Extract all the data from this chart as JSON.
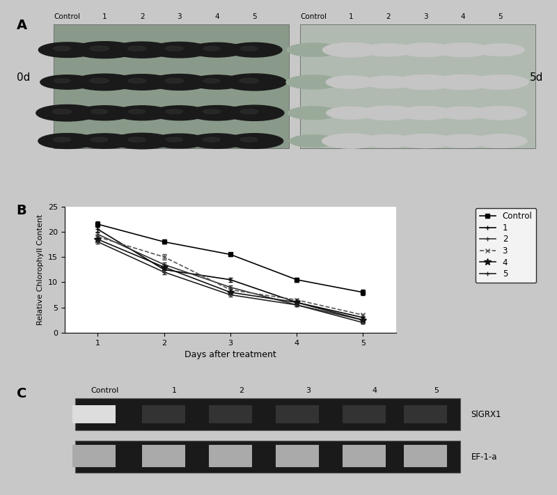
{
  "background_color": "#c8c8c8",
  "panel_A_label": "A",
  "panel_B_label": "B",
  "panel_C_label": "C",
  "top_labels_left": [
    "Control",
    "1",
    "2",
    "3",
    "4",
    "5"
  ],
  "top_labels_right": [
    "Control",
    "1",
    "2",
    "3",
    "4",
    "5"
  ],
  "side_label_left": "0d",
  "side_label_right": "5d",
  "xlabel": "Days after treatment",
  "ylabel": "Relative Chlorophyll Content",
  "ylim": [
    0,
    25
  ],
  "yticks": [
    0,
    5,
    10,
    15,
    20,
    25
  ],
  "xticks": [
    1,
    2,
    3,
    4,
    5
  ],
  "days": [
    1,
    2,
    3,
    4,
    5
  ],
  "series": {
    "Control": {
      "values": [
        21.5,
        18.0,
        15.5,
        10.5,
        8.0
      ],
      "errors": [
        0.5,
        0.4,
        0.4,
        0.4,
        0.6
      ],
      "marker": "s",
      "color": "#000000",
      "linestyle": "-"
    },
    "1": {
      "values": [
        20.5,
        12.5,
        10.5,
        6.0,
        3.0
      ],
      "errors": [
        0.5,
        0.5,
        0.4,
        0.3,
        0.2
      ],
      "marker": "+",
      "color": "#000000",
      "linestyle": "-"
    },
    "2": {
      "values": [
        19.5,
        13.5,
        9.0,
        5.5,
        2.5
      ],
      "errors": [
        0.4,
        0.4,
        0.3,
        0.3,
        0.2
      ],
      "marker": "+",
      "color": "#333333",
      "linestyle": "-"
    },
    "3": {
      "values": [
        19.0,
        15.0,
        8.5,
        6.5,
        3.5
      ],
      "errors": [
        0.4,
        0.5,
        0.3,
        0.3,
        0.2
      ],
      "marker": "x",
      "color": "#555555",
      "linestyle": "--"
    },
    "4": {
      "values": [
        18.5,
        13.0,
        8.0,
        6.0,
        2.5
      ],
      "errors": [
        0.4,
        0.5,
        0.3,
        0.3,
        0.2
      ],
      "marker": "*",
      "color": "#111111",
      "linestyle": "-"
    },
    "5": {
      "values": [
        18.0,
        12.0,
        7.5,
        5.5,
        2.0
      ],
      "errors": [
        0.4,
        0.4,
        0.3,
        0.3,
        0.2
      ],
      "marker": "+",
      "color": "#222222",
      "linestyle": "-"
    }
  },
  "gel_label_control": "Control",
  "gel_labels": [
    "1",
    "2",
    "3",
    "4",
    "5"
  ],
  "gel_band1_label": "SlGRX1",
  "gel_band2_label": "EF-1-a",
  "gel_bg_color": "#1a1a1a",
  "gel_band_color1": "#cccccc",
  "gel_band_color2": "#888888"
}
